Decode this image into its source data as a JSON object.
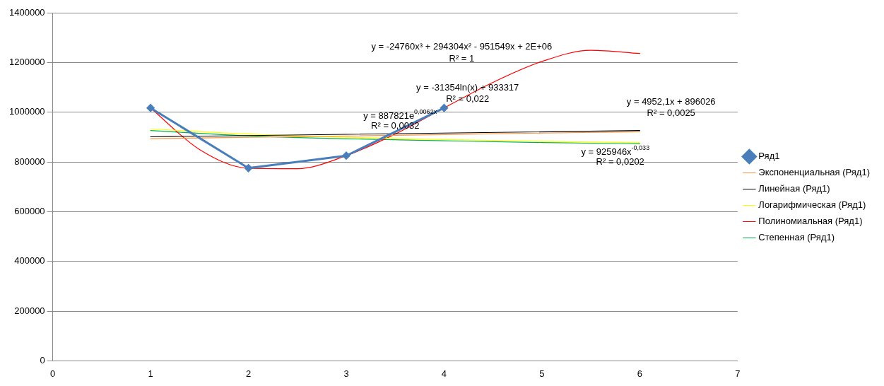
{
  "chart_data": {
    "type": "line",
    "xlim": [
      0,
      7
    ],
    "xticks": [
      0,
      1,
      2,
      3,
      4,
      5,
      6,
      7
    ],
    "ylim": [
      0,
      1400000
    ],
    "yticks": [
      0,
      200000,
      400000,
      600000,
      800000,
      1000000,
      1200000,
      1400000
    ],
    "grid": "y",
    "legend": "right",
    "series": [
      {
        "name": "Ряд1",
        "color": "#4a7ebb",
        "marker": "diamond",
        "x": [
          1,
          2,
          3,
          4
        ],
        "values": [
          1017000,
          775000,
          825000,
          1017000
        ]
      },
      {
        "name": "Экспоненциальная (Ряд1)",
        "color": "#f79646",
        "marker": "none",
        "x": [
          1,
          2,
          3,
          4,
          5,
          6
        ],
        "values": [
          893000,
          899000,
          904000,
          910000,
          916000,
          921000
        ]
      },
      {
        "name": "Линейная (Ряд1)",
        "color": "#000000",
        "marker": "none",
        "x": [
          1,
          6
        ],
        "values": [
          901000,
          926000
        ]
      },
      {
        "name": "Логарифмическая (Ряд1)",
        "color": "#ffff00",
        "marker": "none",
        "x": [
          1,
          2,
          3,
          4,
          5,
          6
        ],
        "values": [
          933000,
          912000,
          899000,
          890000,
          883000,
          877000
        ]
      },
      {
        "name": "Полиномиальная (Ряд1)",
        "color": "#ff0000",
        "marker": "none",
        "x": [
          1,
          1.5,
          2,
          2.5,
          3,
          3.5,
          4,
          4.5,
          5,
          5.5,
          6
        ],
        "values": [
          1017000,
          850000,
          775000,
          773000,
          825000,
          912000,
          1017000,
          1120000,
          1204000,
          1249000,
          1236000
        ]
      },
      {
        "name": "Степенная (Ряд1)",
        "color": "#00b050",
        "marker": "none",
        "x": [
          1,
          2,
          3,
          4,
          5,
          6
        ],
        "values": [
          926000,
          905000,
          893000,
          885000,
          878000,
          873000
        ]
      }
    ],
    "annotations": [
      "y = -24760x³ + 294304x² - 951549x + 2E+06",
      "R² = 1",
      "y = -31354ln(x) + 933317",
      "R² = 0,022",
      "y = 887821e$^{0,0062x}$",
      "R² = 0,0032",
      "y = 4952,1x + 896026",
      "R² = 0,0025",
      "y = 925946x$^{-0,033}$",
      "R² = 0,0202"
    ]
  }
}
